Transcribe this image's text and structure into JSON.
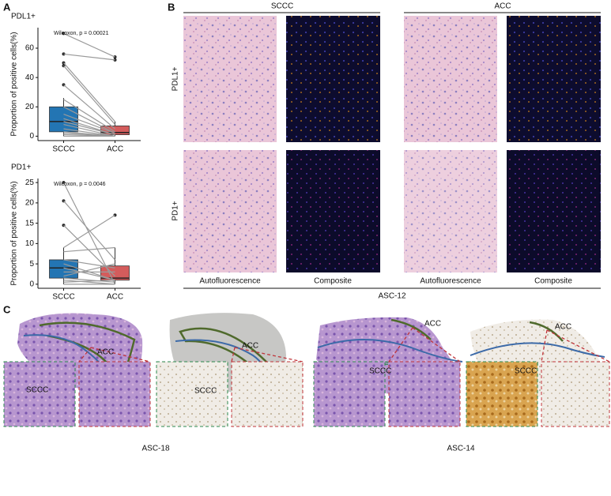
{
  "panel_labels": {
    "a": "A",
    "b": "B",
    "c": "C"
  },
  "chart_data": [
    {
      "type": "box",
      "title": "PDL1+",
      "y_label": "Proportion of positive cells(%)",
      "annotation": "Wilcoxon, p = 0.00021",
      "categories": [
        "SCCC",
        "ACC"
      ],
      "box_colors": [
        "#2375b3",
        "#d45c5c"
      ],
      "ylim": [
        -3,
        74
      ],
      "yticks": [
        0,
        20,
        40,
        60
      ],
      "boxes": [
        {
          "min": 0,
          "q1": 3,
          "median": 10,
          "q3": 20,
          "max": 26,
          "outliers": [
            35,
            48,
            50,
            56,
            70
          ]
        },
        {
          "min": 0,
          "q1": 1,
          "median": 2.5,
          "q3": 7,
          "max": 10,
          "outliers": [
            52,
            54
          ]
        }
      ],
      "pairs": [
        [
          70,
          54
        ],
        [
          56,
          52
        ],
        [
          50,
          10
        ],
        [
          48,
          8
        ],
        [
          35,
          5
        ],
        [
          25,
          3
        ],
        [
          20,
          2
        ],
        [
          15,
          2
        ],
        [
          12,
          1
        ],
        [
          10,
          1
        ],
        [
          8,
          0
        ],
        [
          5,
          0
        ],
        [
          3,
          0
        ],
        [
          2,
          0
        ],
        [
          1,
          0
        ],
        [
          0,
          0
        ]
      ]
    },
    {
      "type": "box",
      "title": "PD1+",
      "y_label": "Proportion of positive cells(%)",
      "annotation": "Wilcoxon, p = 0.0046",
      "categories": [
        "SCCC",
        "ACC"
      ],
      "box_colors": [
        "#2375b3",
        "#d45c5c"
      ],
      "ylim": [
        -1,
        26
      ],
      "yticks": [
        0,
        5,
        10,
        15,
        20,
        25
      ],
      "boxes": [
        {
          "min": 0,
          "q1": 1.5,
          "median": 4,
          "q3": 6,
          "max": 9,
          "outliers": [
            14.5,
            20.5,
            25
          ]
        },
        {
          "min": 0,
          "q1": 1,
          "median": 1.5,
          "q3": 4.5,
          "max": 9,
          "outliers": [
            17
          ]
        }
      ],
      "pairs": [
        [
          25,
          0
        ],
        [
          20.5,
          6
        ],
        [
          14.5,
          2
        ],
        [
          9,
          17
        ],
        [
          8,
          9
        ],
        [
          6,
          4
        ],
        [
          5,
          1
        ],
        [
          4,
          1
        ],
        [
          3,
          3
        ],
        [
          2,
          5
        ],
        [
          1.5,
          0.5
        ],
        [
          1,
          0
        ],
        [
          0.5,
          1
        ],
        [
          0,
          0
        ]
      ]
    }
  ],
  "panel_b": {
    "columns": [
      "SCCC",
      "ACC"
    ],
    "rows": [
      "PDL1+",
      "PD1+"
    ],
    "image_labels": [
      "Autofluorescence",
      "Composite",
      "Autofluorescence",
      "Composite"
    ],
    "sample": "ASC-12"
  },
  "panel_c": {
    "slides": [
      {
        "acc": "ACC",
        "sccc": "SCCC"
      },
      {
        "acc": "ACC",
        "sccc": "SCCC"
      },
      {
        "acc": "ACC",
        "sccc": "SCCC"
      },
      {
        "acc": "ACC",
        "sccc": "SCCC"
      }
    ],
    "samples": [
      "ASC-18",
      "ASC-14"
    ]
  }
}
